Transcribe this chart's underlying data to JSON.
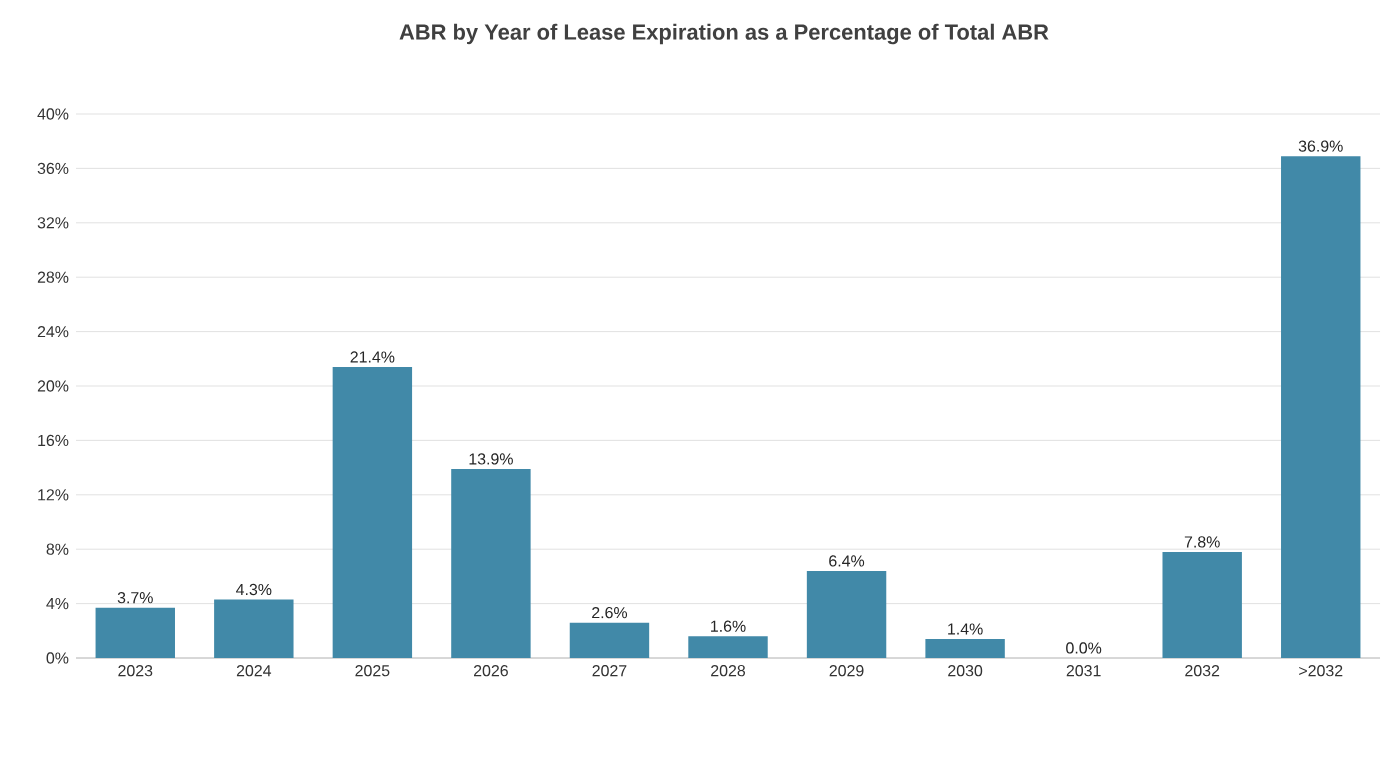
{
  "chart_data": {
    "type": "bar",
    "title": "ABR by Year of Lease Expiration as a Percentage of Total ABR",
    "categories": [
      "2023",
      "2024",
      "2025",
      "2026",
      "2027",
      "2028",
      "2029",
      "2030",
      "2031",
      "2032",
      ">2032"
    ],
    "values": [
      3.7,
      4.3,
      21.4,
      13.9,
      2.6,
      1.6,
      6.4,
      1.4,
      0.0,
      7.8,
      36.9
    ],
    "value_labels": [
      "3.7%",
      "4.3%",
      "21.4%",
      "13.9%",
      "2.6%",
      "1.6%",
      "6.4%",
      "1.4%",
      "0.0%",
      "7.8%",
      "36.9%"
    ],
    "color": "#4189a8",
    "ylim": [
      0,
      40
    ],
    "yticks": [
      {
        "value": 0,
        "label": "0%"
      },
      {
        "value": 4,
        "label": "4%"
      },
      {
        "value": 8,
        "label": "8%"
      },
      {
        "value": 12,
        "label": "12%"
      },
      {
        "value": 16,
        "label": "16%"
      },
      {
        "value": 20,
        "label": "20%"
      },
      {
        "value": 24,
        "label": "24%"
      },
      {
        "value": 28,
        "label": "28%"
      },
      {
        "value": 32,
        "label": "32%"
      },
      {
        "value": 36,
        "label": "36%"
      },
      {
        "value": 40,
        "label": "40%"
      }
    ],
    "grid": "y"
  }
}
